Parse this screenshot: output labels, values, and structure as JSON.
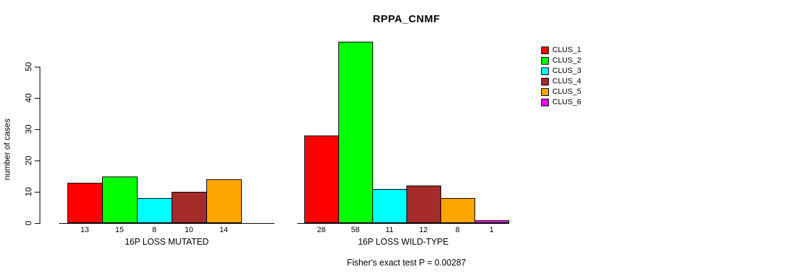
{
  "title": "RPPA_CNMF",
  "footer": "Fisher's exact test P = 0.00287",
  "legend": {
    "items": [
      {
        "label": "CLUS_1",
        "color": "#FF0000"
      },
      {
        "label": "CLUS_2",
        "color": "#00FF00"
      },
      {
        "label": "CLUS_3",
        "color": "#00FFFF"
      },
      {
        "label": "CLUS_4",
        "color": "#A52A2A"
      },
      {
        "label": "CLUS_5",
        "color": "#FFA500"
      },
      {
        "label": "CLUS_6",
        "color": "#FF00FF"
      }
    ]
  },
  "chart_data": {
    "type": "bar",
    "title": "RPPA_CNMF",
    "xlabel": "",
    "ylabel": "number of cases",
    "ylim": [
      0,
      58
    ],
    "yticks": [
      0,
      10,
      20,
      30,
      40,
      50
    ],
    "grid": false,
    "legend_position": "right",
    "series_labels": [
      "CLUS_1",
      "CLUS_2",
      "CLUS_3",
      "CLUS_4",
      "CLUS_5",
      "CLUS_6"
    ],
    "colors": [
      "#FF0000",
      "#00FF00",
      "#00FFFF",
      "#A52A2A",
      "#FFA500",
      "#FF00FF"
    ],
    "groups": [
      {
        "label": "16P LOSS MUTATED",
        "values": [
          13,
          15,
          8,
          10,
          14,
          0
        ],
        "value_labels": [
          "13",
          "15",
          "8",
          "10",
          "14",
          ""
        ]
      },
      {
        "label": "16P LOSS WILD-TYPE",
        "values": [
          28,
          58,
          11,
          12,
          8,
          1
        ],
        "value_labels": [
          "28",
          "58",
          "11",
          "12",
          "8",
          "1"
        ]
      }
    ],
    "annotation": "Fisher's exact test P = 0.00287"
  }
}
